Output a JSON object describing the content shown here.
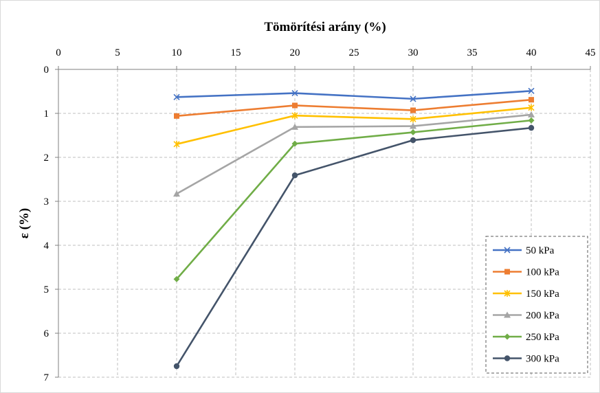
{
  "chart_data": {
    "type": "line",
    "title": "Tömörítési arány (%)",
    "xlabel": "Tömörítési arány (%)",
    "ylabel": "ε (%)",
    "x_axis_position": "top",
    "y_inverted": true,
    "xlim": [
      0,
      45
    ],
    "ylim": [
      0,
      7
    ],
    "x_ticks": [
      "0",
      "5",
      "10",
      "15",
      "20",
      "25",
      "30",
      "35",
      "40",
      "45"
    ],
    "y_ticks": [
      "0",
      "1",
      "2",
      "3",
      "4",
      "5",
      "6",
      "7"
    ],
    "grid": true,
    "legend_position": "bottom-right",
    "x": [
      10,
      20,
      30,
      40
    ],
    "series": [
      {
        "name": "50 kPa",
        "marker": "x",
        "color": "#4472c4",
        "values": [
          0.63,
          0.54,
          0.67,
          0.49
        ]
      },
      {
        "name": "100 kPa",
        "marker": "square",
        "color": "#ed7d31",
        "values": [
          1.06,
          0.82,
          0.93,
          0.69
        ]
      },
      {
        "name": "150 kPa",
        "marker": "asterisk",
        "color": "#ffc000",
        "values": [
          1.7,
          1.05,
          1.13,
          0.87
        ]
      },
      {
        "name": "200 kPa",
        "marker": "triangle",
        "color": "#a5a5a5",
        "values": [
          2.83,
          1.31,
          1.29,
          1.03
        ]
      },
      {
        "name": "250 kPa",
        "marker": "diamond",
        "color": "#70ad47",
        "values": [
          4.77,
          1.69,
          1.43,
          1.16
        ]
      },
      {
        "name": "300 kPa",
        "marker": "circle",
        "color": "#44546a",
        "values": [
          6.75,
          2.41,
          1.61,
          1.33
        ]
      }
    ]
  }
}
